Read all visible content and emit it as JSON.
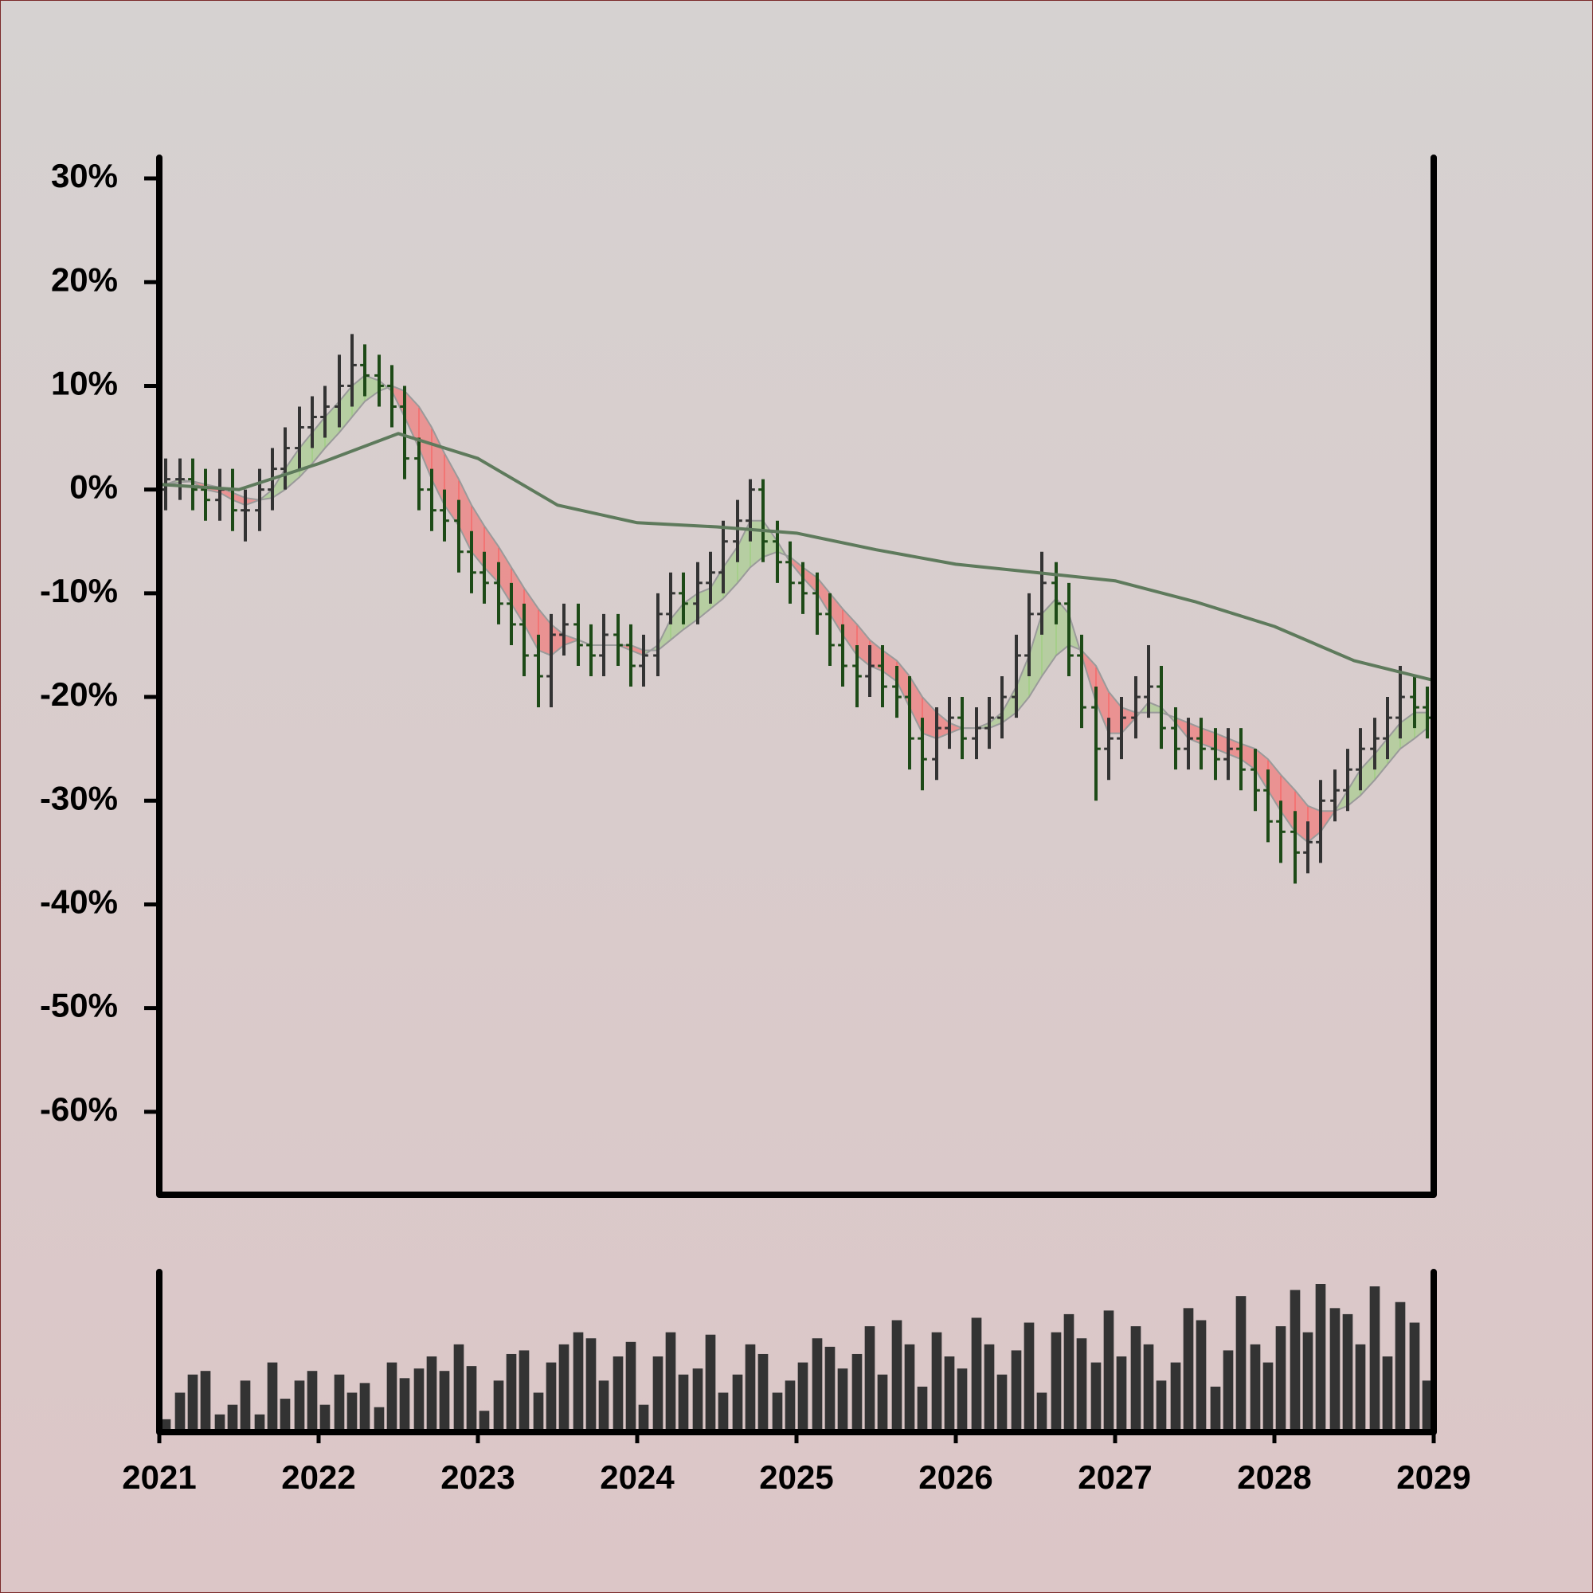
{
  "chart_data": {
    "type": "ohlc",
    "xlim": [
      2021,
      2029
    ],
    "xticks": [
      2021,
      2022,
      2023,
      2024,
      2025,
      2026,
      2027,
      2028,
      2029
    ],
    "ylim": [
      -68,
      32
    ],
    "yticks": [
      {
        "value": 30,
        "label": "30%"
      },
      {
        "value": 20,
        "label": "20%"
      },
      {
        "value": 10,
        "label": "10%"
      },
      {
        "value": 0,
        "label": "0%"
      },
      {
        "value": -10,
        "label": "-10%"
      },
      {
        "value": -20,
        "label": "-20%"
      },
      {
        "value": -30,
        "label": "-30%"
      },
      {
        "value": -40,
        "label": "-40%"
      },
      {
        "value": -50,
        "label": "-50%"
      },
      {
        "value": -60,
        "label": "-60%"
      }
    ],
    "up_color": "#333333",
    "down_color": "#1d4a17",
    "volume_color": "#333333",
    "ribbon_up_color": "#8fcf6c",
    "ribbon_down_color": "#ff4b4b",
    "x": [
      2021.04,
      2021.13,
      2021.21,
      2021.29,
      2021.38,
      2021.46,
      2021.54,
      2021.63,
      2021.71,
      2021.79,
      2021.88,
      2021.96,
      2022.04,
      2022.13,
      2022.21,
      2022.29,
      2022.38,
      2022.46,
      2022.54,
      2022.63,
      2022.71,
      2022.79,
      2022.88,
      2022.96,
      2023.04,
      2023.13,
      2023.21,
      2023.29,
      2023.38,
      2023.46,
      2023.54,
      2023.63,
      2023.71,
      2023.79,
      2023.88,
      2023.96,
      2024.04,
      2024.13,
      2024.21,
      2024.29,
      2024.38,
      2024.46,
      2024.54,
      2024.63,
      2024.71,
      2024.79,
      2024.88,
      2024.96,
      2025.04,
      2025.13,
      2025.21,
      2025.29,
      2025.38,
      2025.46,
      2025.54,
      2025.63,
      2025.71,
      2025.79,
      2025.88,
      2025.96,
      2026.04,
      2026.13,
      2026.21,
      2026.29,
      2026.38,
      2026.46,
      2026.54,
      2026.63,
      2026.71,
      2026.79,
      2026.88,
      2026.96,
      2027.04,
      2027.13,
      2027.21,
      2027.29,
      2027.38,
      2027.46,
      2027.54,
      2027.63,
      2027.71,
      2027.79,
      2027.88,
      2027.96,
      2028.04,
      2028.13,
      2028.21,
      2028.29,
      2028.38,
      2028.46,
      2028.54,
      2028.63,
      2028.71,
      2028.79,
      2028.88,
      2028.96
    ],
    "open": [
      0,
      1,
      1,
      0,
      -1,
      0,
      -2,
      -2,
      0,
      2,
      4,
      6,
      7,
      8,
      10,
      12,
      11,
      10,
      8,
      3,
      0,
      -2,
      -3,
      -6,
      -8,
      -9,
      -11,
      -13,
      -16,
      -18,
      -14,
      -13,
      -15,
      -16,
      -14,
      -15,
      -17,
      -16,
      -12,
      -10,
      -11,
      -9,
      -8,
      -5,
      -3,
      0,
      -5,
      -7,
      -9,
      -10,
      -12,
      -15,
      -17,
      -18,
      -17,
      -19,
      -20,
      -24,
      -26,
      -23,
      -22,
      -24,
      -23,
      -22,
      -20,
      -16,
      -12,
      -9,
      -11,
      -16,
      -21,
      -25,
      -24,
      -22,
      -20,
      -19,
      -23,
      -25,
      -24,
      -25,
      -26,
      -25,
      -27,
      -29,
      -32,
      -33,
      -35,
      -34,
      -30,
      -29,
      -27,
      -25,
      -24,
      -22,
      -20,
      -21
    ],
    "high": [
      3,
      3,
      3,
      2,
      2,
      2,
      0,
      2,
      4,
      6,
      8,
      9,
      10,
      13,
      15,
      14,
      13,
      12,
      10,
      5,
      2,
      0,
      -1,
      -4,
      -6,
      -7,
      -9,
      -11,
      -14,
      -12,
      -11,
      -11,
      -13,
      -12,
      -12,
      -13,
      -14,
      -10,
      -8,
      -8,
      -7,
      -6,
      -3,
      -1,
      1,
      1,
      -3,
      -5,
      -7,
      -8,
      -10,
      -13,
      -15,
      -15,
      -15,
      -17,
      -18,
      -22,
      -21,
      -20,
      -20,
      -21,
      -20,
      -18,
      -14,
      -10,
      -6,
      -7,
      -9,
      -14,
      -19,
      -22,
      -20,
      -18,
      -15,
      -17,
      -21,
      -22,
      -22,
      -23,
      -23,
      -23,
      -25,
      -27,
      -30,
      -31,
      -32,
      -28,
      -27,
      -25,
      -23,
      -22,
      -20,
      -17,
      -18,
      -19
    ],
    "low": [
      -2,
      -1,
      -2,
      -3,
      -3,
      -4,
      -5,
      -4,
      -2,
      0,
      2,
      4,
      5,
      6,
      8,
      9,
      8,
      6,
      1,
      -2,
      -4,
      -5,
      -8,
      -10,
      -11,
      -13,
      -15,
      -18,
      -21,
      -21,
      -16,
      -17,
      -18,
      -18,
      -17,
      -19,
      -19,
      -18,
      -13,
      -13,
      -13,
      -11,
      -10,
      -7,
      -5,
      -7,
      -9,
      -11,
      -12,
      -14,
      -17,
      -19,
      -21,
      -20,
      -21,
      -22,
      -27,
      -29,
      -28,
      -25,
      -26,
      -26,
      -25,
      -24,
      -22,
      -18,
      -14,
      -13,
      -18,
      -23,
      -30,
      -28,
      -26,
      -24,
      -22,
      -25,
      -27,
      -27,
      -27,
      -28,
      -28,
      -29,
      -31,
      -34,
      -36,
      -38,
      -37,
      -36,
      -32,
      -31,
      -29,
      -27,
      -26,
      -24,
      -23,
      -24
    ],
    "close": [
      1,
      1,
      0,
      -1,
      0,
      -2,
      -2,
      0,
      2,
      4,
      6,
      7,
      8,
      10,
      12,
      11,
      10,
      8,
      3,
      0,
      -2,
      -3,
      -6,
      -8,
      -9,
      -11,
      -13,
      -16,
      -18,
      -14,
      -13,
      -15,
      -16,
      -14,
      -15,
      -17,
      -16,
      -12,
      -10,
      -11,
      -9,
      -8,
      -5,
      -3,
      0,
      -5,
      -7,
      -9,
      -10,
      -12,
      -15,
      -17,
      -18,
      -17,
      -19,
      -20,
      -24,
      -26,
      -23,
      -22,
      -24,
      -23,
      -22,
      -20,
      -16,
      -12,
      -9,
      -11,
      -16,
      -21,
      -25,
      -24,
      -22,
      -20,
      -19,
      -23,
      -25,
      -24,
      -25,
      -26,
      -25,
      -27,
      -29,
      -32,
      -33,
      -35,
      -34,
      -30,
      -29,
      -27,
      -25,
      -24,
      -22,
      -20,
      -21,
      -22
    ],
    "volume": [
      8,
      30,
      45,
      48,
      12,
      20,
      40,
      12,
      55,
      25,
      40,
      48,
      20,
      45,
      30,
      38,
      18,
      55,
      42,
      50,
      60,
      48,
      70,
      52,
      15,
      40,
      62,
      65,
      30,
      55,
      70,
      80,
      75,
      40,
      60,
      72,
      20,
      60,
      80,
      45,
      50,
      78,
      30,
      45,
      70,
      62,
      30,
      40,
      55,
      75,
      68,
      50,
      62,
      85,
      45,
      90,
      70,
      35,
      80,
      60,
      50,
      92,
      70,
      45,
      65,
      88,
      30,
      80,
      95,
      75,
      55,
      98,
      60,
      85,
      70,
      40,
      55,
      100,
      90,
      35,
      65,
      110,
      70,
      55,
      85,
      115,
      80,
      120,
      100,
      95,
      70,
      118,
      60,
      105,
      88,
      40
    ],
    "ma_fast": [
      0.5,
      1,
      0.7,
      0,
      -0.3,
      -1,
      -1.5,
      -1,
      0,
      2,
      4,
      5.5,
      7,
      8.5,
      10,
      11,
      10.5,
      9.5,
      7,
      4,
      1,
      -1.5,
      -3.5,
      -6,
      -7.5,
      -9,
      -11,
      -13,
      -15.5,
      -16,
      -15,
      -14.5,
      -15,
      -15,
      -15,
      -15.5,
      -16,
      -15,
      -12.5,
      -11,
      -10,
      -9.5,
      -7.5,
      -5.5,
      -3,
      -3,
      -5,
      -7,
      -8.5,
      -10,
      -12,
      -14,
      -16,
      -17,
      -17.5,
      -18.5,
      -21,
      -23.5,
      -24,
      -23.5,
      -23,
      -23,
      -22.5,
      -21.5,
      -19,
      -16,
      -12,
      -10.5,
      -12,
      -16,
      -20.5,
      -23.5,
      -23.5,
      -22,
      -20.5,
      -21,
      -22.5,
      -24,
      -24.5,
      -25,
      -25.5,
      -26,
      -27,
      -29,
      -31,
      -33,
      -34,
      -33,
      -31,
      -29,
      -27,
      -25.5,
      -24,
      -22.5,
      -21.5,
      -21.5
    ],
    "ma_slow": [
      0.5,
      0.7,
      0.8,
      0.5,
      0.2,
      -0.3,
      -0.8,
      -1,
      -0.8,
      0,
      1.2,
      2.5,
      4,
      5.5,
      7,
      8.5,
      9.5,
      10,
      9.5,
      8,
      6,
      3.5,
      1,
      -1.5,
      -3.5,
      -5.5,
      -7.5,
      -9.5,
      -11.5,
      -13,
      -14,
      -14.5,
      -15,
      -15,
      -15,
      -15,
      -15.5,
      -15.5,
      -14.5,
      -13.5,
      -12.5,
      -11.5,
      -10.5,
      -9,
      -7.5,
      -6.5,
      -6,
      -6.5,
      -7.5,
      -8.5,
      -10,
      -11.5,
      -13,
      -14.5,
      -15.5,
      -16.5,
      -18,
      -20,
      -21.5,
      -22.5,
      -23,
      -23,
      -23,
      -22.5,
      -21.5,
      -20,
      -18,
      -16,
      -15,
      -15.5,
      -17,
      -19.5,
      -21,
      -21.5,
      -21.5,
      -21.5,
      -22,
      -22.5,
      -23,
      -23.5,
      -24,
      -24.5,
      -25,
      -26,
      -27.5,
      -29,
      -30.5,
      -31,
      -31,
      -30.5,
      -29.5,
      -28,
      -26.5,
      -25,
      -24,
      -23
    ],
    "ma_long": {
      "color": "#5e7a5c",
      "x": [
        2021,
        2021.5,
        2022,
        2022.5,
        2023,
        2023.5,
        2024,
        2024.5,
        2025,
        2025.5,
        2026,
        2026.5,
        2027,
        2027.5,
        2028,
        2028.5,
        2029
      ],
      "values": [
        0.5,
        0,
        2.5,
        5.4,
        3,
        -1.5,
        -3.2,
        -3.6,
        -4.2,
        -5.8,
        -7.2,
        -8,
        -8.8,
        -10.8,
        -13.2,
        -16.5,
        -18.4
      ]
    }
  }
}
